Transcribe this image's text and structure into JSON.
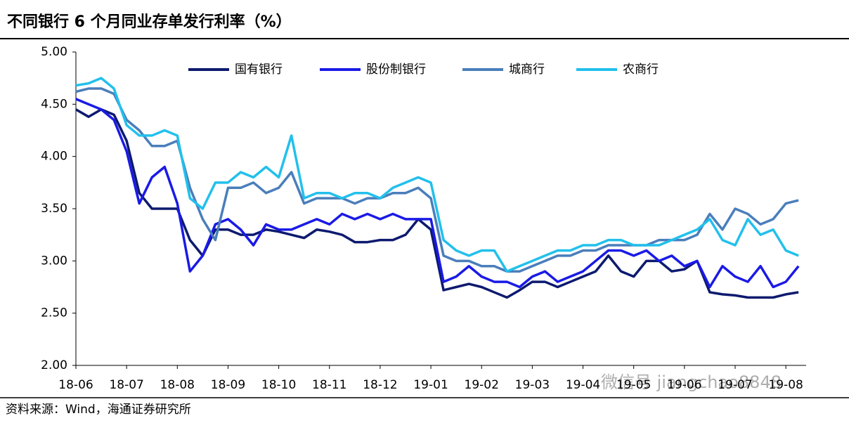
{
  "chart_data": {
    "type": "line",
    "title": "不同银行 6 个月同业存单发行利率（%）",
    "source": "资料来源：Wind，海通证券研究所",
    "watermark": "微信号 jiangchao8848",
    "legend": "top",
    "xlim": [
      0,
      14.4
    ],
    "xticks": [
      {
        "value": 0,
        "label": "18-06"
      },
      {
        "value": 1,
        "label": "18-07"
      },
      {
        "value": 2,
        "label": "18-08"
      },
      {
        "value": 3,
        "label": "18-09"
      },
      {
        "value": 4,
        "label": "18-10"
      },
      {
        "value": 5,
        "label": "18-11"
      },
      {
        "value": 6,
        "label": "18-12"
      },
      {
        "value": 7,
        "label": "19-01"
      },
      {
        "value": 8,
        "label": "19-02"
      },
      {
        "value": 9,
        "label": "19-03"
      },
      {
        "value": 10,
        "label": "19-04"
      },
      {
        "value": 11,
        "label": "19-05"
      },
      {
        "value": 12,
        "label": "19-06"
      },
      {
        "value": 13,
        "label": "19-07"
      },
      {
        "value": 14,
        "label": "19-08"
      }
    ],
    "ylim": [
      2,
      5
    ],
    "yticks": [
      {
        "value": 2,
        "label": "2.00"
      },
      {
        "value": 2.5,
        "label": "2.50"
      },
      {
        "value": 3,
        "label": "3.00"
      },
      {
        "value": 3.5,
        "label": "3.50"
      },
      {
        "value": 4,
        "label": "4.00"
      },
      {
        "value": 4.5,
        "label": "4.50"
      },
      {
        "value": 5,
        "label": "5.00"
      }
    ],
    "x": [
      0,
      0.25,
      0.5,
      0.75,
      1,
      1.25,
      1.5,
      1.75,
      2,
      2.25,
      2.5,
      2.75,
      3,
      3.25,
      3.5,
      3.75,
      4,
      4.25,
      4.5,
      4.75,
      5,
      5.25,
      5.5,
      5.75,
      6,
      6.25,
      6.5,
      6.75,
      7,
      7.25,
      7.5,
      7.75,
      8,
      8.25,
      8.5,
      8.75,
      9,
      9.25,
      9.5,
      9.75,
      10,
      10.25,
      10.5,
      10.75,
      11,
      11.25,
      11.5,
      11.75,
      12,
      12.25,
      12.5,
      12.75,
      13,
      13.25,
      13.5,
      13.75,
      14,
      14.25
    ],
    "series": [
      {
        "name": "国有银行",
        "color": "#0d1a6e",
        "values": [
          4.45,
          4.38,
          4.45,
          4.4,
          4.15,
          3.65,
          3.5,
          3.5,
          3.5,
          3.2,
          3.05,
          3.3,
          3.3,
          3.25,
          3.25,
          3.3,
          3.28,
          3.25,
          3.22,
          3.3,
          3.28,
          3.25,
          3.18,
          3.18,
          3.2,
          3.2,
          3.25,
          3.4,
          3.3,
          2.72,
          2.75,
          2.78,
          2.75,
          2.7,
          2.65,
          2.72,
          2.8,
          2.8,
          2.75,
          2.8,
          2.85,
          2.9,
          3.05,
          2.9,
          2.85,
          3.0,
          3.0,
          2.9,
          2.92,
          3.0,
          2.7,
          2.68,
          2.67,
          2.65,
          2.65,
          2.65,
          2.68,
          2.7
        ]
      },
      {
        "name": "股份制银行",
        "color": "#1a1ae6",
        "values": [
          4.55,
          4.5,
          4.45,
          4.35,
          4.05,
          3.55,
          3.8,
          3.9,
          3.55,
          2.9,
          3.05,
          3.35,
          3.4,
          3.3,
          3.15,
          3.35,
          3.3,
          3.3,
          3.35,
          3.4,
          3.35,
          3.45,
          3.4,
          3.45,
          3.4,
          3.45,
          3.4,
          3.4,
          3.4,
          2.8,
          2.85,
          2.95,
          2.85,
          2.8,
          2.8,
          2.75,
          2.85,
          2.9,
          2.8,
          2.85,
          2.9,
          3.0,
          3.1,
          3.1,
          3.05,
          3.1,
          3.0,
          3.05,
          2.95,
          3.0,
          2.75,
          2.95,
          2.85,
          2.8,
          2.95,
          2.75,
          2.8,
          2.95
        ]
      },
      {
        "name": "城商行",
        "color": "#4a7ebb",
        "values": [
          4.62,
          4.65,
          4.65,
          4.6,
          4.35,
          4.25,
          4.1,
          4.1,
          4.15,
          3.7,
          3.4,
          3.2,
          3.7,
          3.7,
          3.75,
          3.65,
          3.7,
          3.85,
          3.55,
          3.6,
          3.6,
          3.6,
          3.55,
          3.6,
          3.6,
          3.65,
          3.65,
          3.7,
          3.6,
          3.05,
          3.0,
          3.0,
          2.95,
          2.95,
          2.9,
          2.9,
          2.95,
          3.0,
          3.05,
          3.05,
          3.1,
          3.1,
          3.15,
          3.15,
          3.15,
          3.15,
          3.2,
          3.2,
          3.2,
          3.25,
          3.45,
          3.3,
          3.5,
          3.45,
          3.35,
          3.4,
          3.55,
          3.58
        ]
      },
      {
        "name": "农商行",
        "color": "#22c0ec",
        "values": [
          4.68,
          4.7,
          4.75,
          4.65,
          4.3,
          4.2,
          4.2,
          4.25,
          4.2,
          3.6,
          3.5,
          3.75,
          3.75,
          3.85,
          3.8,
          3.9,
          3.8,
          4.2,
          3.6,
          3.65,
          3.65,
          3.6,
          3.65,
          3.65,
          3.6,
          3.7,
          3.75,
          3.8,
          3.75,
          3.2,
          3.1,
          3.05,
          3.1,
          3.1,
          2.9,
          2.95,
          3.0,
          3.05,
          3.1,
          3.1,
          3.15,
          3.15,
          3.2,
          3.2,
          3.15,
          3.15,
          3.15,
          3.2,
          3.25,
          3.3,
          3.4,
          3.2,
          3.15,
          3.4,
          3.25,
          3.3,
          3.1,
          3.05
        ]
      }
    ]
  }
}
